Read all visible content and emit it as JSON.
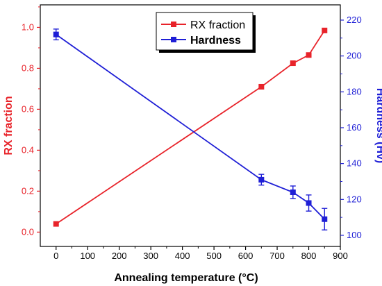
{
  "chart_data": {
    "type": "line",
    "xlabel": "Annealing temperature (°C)",
    "x_ticks": [
      "0",
      "100",
      "200",
      "300",
      "400",
      "500",
      "600",
      "700",
      "800",
      "900"
    ],
    "xlim": [
      -50,
      900
    ],
    "y_left": {
      "label": "RX fraction",
      "lim": [
        -0.07,
        1.11
      ],
      "ticks": [
        "0.0",
        "0.2",
        "0.4",
        "0.6",
        "0.8",
        "1.0"
      ],
      "color": "#e8232a"
    },
    "y_right": {
      "label": "Hardness (Hv)",
      "lim": [
        93.8,
        228.5
      ],
      "ticks": [
        "100",
        "120",
        "140",
        "160",
        "180",
        "200",
        "220"
      ],
      "color": "#1f1fd6"
    },
    "legend_position": "top-center",
    "series": [
      {
        "name": "RX fraction",
        "axis": "left",
        "color": "#e8232a",
        "marker": "square",
        "x": [
          0,
          650,
          750,
          800,
          850
        ],
        "y": [
          0.04,
          0.71,
          0.825,
          0.865,
          0.985
        ]
      },
      {
        "name": "Hardness",
        "axis": "right",
        "color": "#1f1fd6",
        "marker": "square",
        "x": [
          0,
          650,
          750,
          800,
          850
        ],
        "y": [
          212,
          131,
          124,
          118,
          109
        ],
        "error": [
          3,
          3,
          3.5,
          4.5,
          6
        ]
      }
    ]
  }
}
